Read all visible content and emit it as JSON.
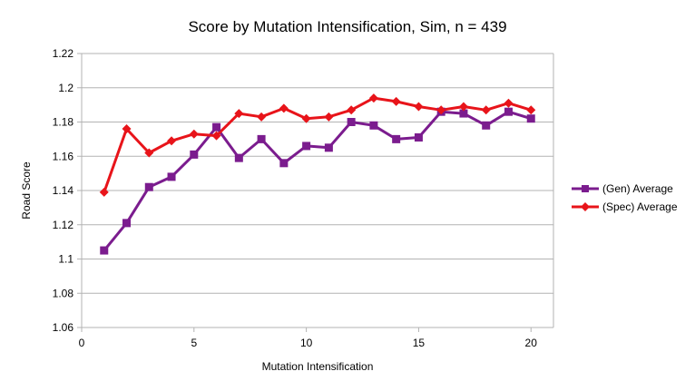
{
  "chart_data": {
    "type": "line",
    "title": "Score by Mutation Intensification, Sim, n = 439",
    "xlabel": "Mutation Intensification",
    "ylabel": "Road Score",
    "xlim": [
      0,
      21
    ],
    "ylim": [
      1.06,
      1.22
    ],
    "xticks": [
      0,
      5,
      10,
      15,
      20
    ],
    "yticks": [
      1.06,
      1.08,
      1.1,
      1.12,
      1.14,
      1.16,
      1.18,
      1.2,
      1.22
    ],
    "grid": "horizontal",
    "legend_position": "right",
    "x": [
      1,
      2,
      3,
      4,
      5,
      6,
      7,
      8,
      9,
      10,
      11,
      12,
      13,
      14,
      15,
      16,
      17,
      18,
      19,
      20
    ],
    "series": [
      {
        "name": "(Gen) Average",
        "color": "#7b1c8e",
        "marker": "square",
        "values": [
          1.105,
          1.121,
          1.142,
          1.148,
          1.161,
          1.177,
          1.159,
          1.17,
          1.156,
          1.166,
          1.165,
          1.18,
          1.178,
          1.17,
          1.171,
          1.186,
          1.185,
          1.178,
          1.186,
          1.182
        ]
      },
      {
        "name": "(Spec) Average",
        "color": "#e8141a",
        "marker": "diamond",
        "values": [
          1.139,
          1.176,
          1.162,
          1.169,
          1.173,
          1.172,
          1.185,
          1.183,
          1.188,
          1.182,
          1.183,
          1.187,
          1.194,
          1.192,
          1.189,
          1.187,
          1.189,
          1.187,
          1.191,
          1.187
        ]
      }
    ]
  }
}
